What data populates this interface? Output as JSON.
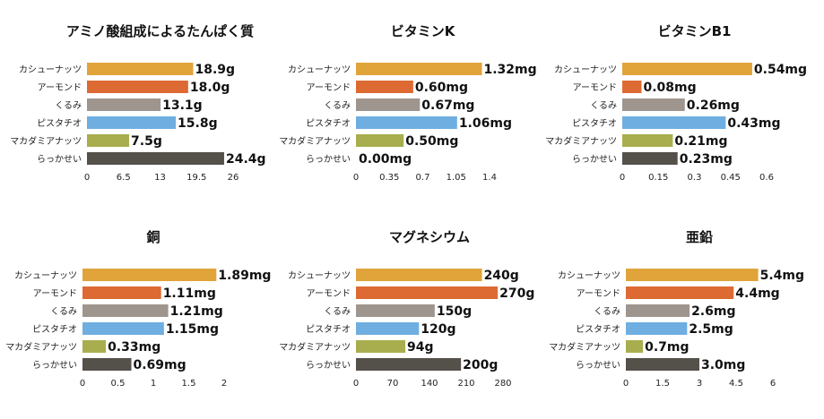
{
  "palette": {
    "cashew": "#E0A43A",
    "almond": "#DD6A33",
    "walnut": "#9E958E",
    "pistachio": "#6FAEE0",
    "macadamia": "#A8AE4E",
    "peanut": "#54504A"
  },
  "chart_data": [
    {
      "type": "bar",
      "orientation": "horizontal",
      "title": "アミノ酸組成によるたんぱく質",
      "categories": [
        "カシューナッツ",
        "アーモンド",
        "くるみ",
        "ピスタチオ",
        "マカダミアナッツ",
        "らっかせい"
      ],
      "values": [
        18.9,
        18.0,
        13.1,
        15.8,
        7.5,
        24.4
      ],
      "value_labels": [
        "18.9g",
        "18.0g",
        "13.1g",
        "15.8g",
        "7.5g",
        "24.4g"
      ],
      "xlim": [
        0,
        26
      ],
      "ticks": [
        0,
        6.5,
        13,
        19.5,
        26
      ],
      "tick_labels": [
        "0",
        "6.5",
        "13",
        "19.5",
        "26"
      ],
      "grid": false,
      "legend": "none"
    },
    {
      "type": "bar",
      "orientation": "horizontal",
      "title": "ビタミンK",
      "categories": [
        "カシューナッツ",
        "アーモンド",
        "くるみ",
        "ピスタチオ",
        "マカダミアナッツ",
        "らっかせい"
      ],
      "values": [
        1.32,
        0.6,
        0.67,
        1.06,
        0.5,
        0.0
      ],
      "value_labels": [
        "1.32mg",
        "0.60mg",
        "0.67mg",
        "1.06mg",
        "0.50mg",
        "0.00mg"
      ],
      "xlim": [
        0,
        1.4
      ],
      "ticks": [
        0,
        0.35,
        0.7,
        1.05,
        1.4
      ],
      "tick_labels": [
        "0",
        "0.35",
        "0.7",
        "1.05",
        "1.4"
      ],
      "grid": false,
      "legend": "none"
    },
    {
      "type": "bar",
      "orientation": "horizontal",
      "title": "ビタミンB1",
      "categories": [
        "カシューナッツ",
        "アーモンド",
        "くるみ",
        "ピスタチオ",
        "マカダミアナッツ",
        "らっかせい"
      ],
      "values": [
        0.54,
        0.08,
        0.26,
        0.43,
        0.21,
        0.23
      ],
      "value_labels": [
        "0.54mg",
        "0.08mg",
        "0.26mg",
        "0.43mg",
        "0.21mg",
        "0.23mg"
      ],
      "xlim": [
        0,
        0.6
      ],
      "ticks": [
        0,
        0.15,
        0.3,
        0.45,
        0.6
      ],
      "tick_labels": [
        "0",
        "0.15",
        "0.3",
        "0.45",
        "0.6"
      ],
      "grid": false,
      "legend": "none"
    },
    {
      "type": "bar",
      "orientation": "horizontal",
      "title": "銅",
      "categories": [
        "カシューナッツ",
        "アーモンド",
        "くるみ",
        "ピスタチオ",
        "マカダミアナッツ",
        "らっかせい"
      ],
      "values": [
        1.89,
        1.11,
        1.21,
        1.15,
        0.33,
        0.69
      ],
      "value_labels": [
        "1.89mg",
        "1.11mg",
        "1.21mg",
        "1.15mg",
        "0.33mg",
        "0.69mg"
      ],
      "xlim": [
        0,
        2
      ],
      "ticks": [
        0,
        0.5,
        1,
        1.5,
        2
      ],
      "tick_labels": [
        "0",
        "0.5",
        "1",
        "1.5",
        "2"
      ],
      "grid": false,
      "legend": "none"
    },
    {
      "type": "bar",
      "orientation": "horizontal",
      "title": "マグネシウム",
      "categories": [
        "カシューナッツ",
        "アーモンド",
        "くるみ",
        "ピスタチオ",
        "マカダミアナッツ",
        "らっかせい"
      ],
      "values": [
        240,
        270,
        150,
        120,
        94,
        200
      ],
      "value_labels": [
        "240g",
        "270g",
        "150g",
        "120g",
        "94g",
        "200g"
      ],
      "xlim": [
        0,
        280
      ],
      "ticks": [
        0,
        70,
        140,
        210,
        280
      ],
      "tick_labels": [
        "0",
        "70",
        "140",
        "210",
        "280"
      ],
      "grid": false,
      "legend": "none"
    },
    {
      "type": "bar",
      "orientation": "horizontal",
      "title": "亜鉛",
      "categories": [
        "カシューナッツ",
        "アーモンド",
        "くるみ",
        "ピスタチオ",
        "マカダミアナッツ",
        "らっかせい"
      ],
      "values": [
        5.4,
        4.4,
        2.6,
        2.5,
        0.7,
        3.0
      ],
      "value_labels": [
        "5.4mg",
        "4.4mg",
        "2.6mg",
        "2.5mg",
        "0.7mg",
        "3.0mg"
      ],
      "xlim": [
        0,
        6
      ],
      "ticks": [
        0,
        1.5,
        3,
        4.5,
        6
      ],
      "tick_labels": [
        "0",
        "1.5",
        "3",
        "4.5",
        "6"
      ],
      "grid": false,
      "legend": "none"
    }
  ]
}
